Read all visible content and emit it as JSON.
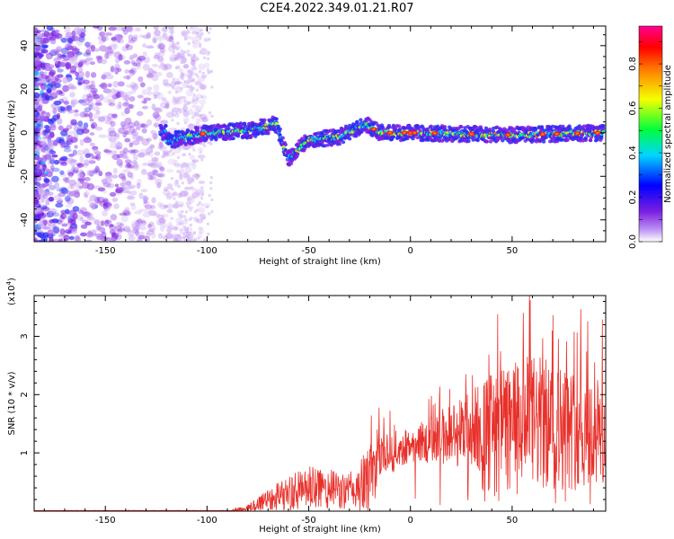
{
  "title": "C2E4.2022.349.01.21.R07",
  "chart_data": [
    {
      "type": "heatmap",
      "xlabel": "Height of straight line (km)",
      "ylabel": "Frequency (Hz)",
      "xlim": [
        -185,
        96
      ],
      "ylim": [
        -50,
        49
      ],
      "xticks": [
        -150,
        -100,
        -50,
        0,
        50
      ],
      "yticks": [
        -40,
        -20,
        0,
        20,
        40
      ],
      "colorbar": {
        "label": "Normalized spectral amplitude",
        "range": [
          0,
          0.97
        ],
        "ticks": [
          0.0,
          0.2,
          0.4,
          0.6,
          0.8
        ],
        "colormap": [
          "#ffffff",
          "#8a2be2",
          "#0000ff",
          "#00e5ff",
          "#00ff3c",
          "#fff000",
          "#ff8c00",
          "#ff0000",
          "#ff0090"
        ]
      },
      "signal_trace": [
        {
          "x": -120,
          "y": -4
        },
        {
          "x": -100,
          "y": 0
        },
        {
          "x": -80,
          "y": 1
        },
        {
          "x": -66,
          "y": 4
        },
        {
          "x": -60,
          "y": -12
        },
        {
          "x": -50,
          "y": -3
        },
        {
          "x": -35,
          "y": -2
        },
        {
          "x": -22,
          "y": 4
        },
        {
          "x": -15,
          "y": 0
        },
        {
          "x": 0,
          "y": 0
        },
        {
          "x": 50,
          "y": -1
        },
        {
          "x": 95,
          "y": 0
        }
      ]
    },
    {
      "type": "line",
      "xlabel": "Height of straight line (km)",
      "ylabel": "SNR (10 * v/v)",
      "multiplier": "(x10",
      "multiplier_exp": "4",
      "multiplier_close": ")",
      "xlim": [
        -185,
        96
      ],
      "ylim": [
        0,
        3.7
      ],
      "xticks": [
        -150,
        -100,
        -50,
        0,
        50
      ],
      "yticks": [
        1,
        2,
        3
      ],
      "color": "#e8302a",
      "envelope": [
        {
          "x": -185,
          "base": 0.0,
          "amp": 0.02
        },
        {
          "x": -90,
          "base": 0.0,
          "amp": 0.02
        },
        {
          "x": -80,
          "base": 0.03,
          "amp": 0.1
        },
        {
          "x": -70,
          "base": 0.2,
          "amp": 0.3
        },
        {
          "x": -50,
          "base": 0.35,
          "amp": 0.55
        },
        {
          "x": -40,
          "base": 0.35,
          "amp": 0.5
        },
        {
          "x": -30,
          "base": 0.3,
          "amp": 0.45
        },
        {
          "x": -20,
          "base": 0.45,
          "amp": 0.9
        },
        {
          "x": -15,
          "base": 0.9,
          "amp": 0.6
        },
        {
          "x": 0,
          "base": 1.1,
          "amp": 0.4
        },
        {
          "x": 10,
          "base": 1.2,
          "amp": 0.6
        },
        {
          "x": 25,
          "base": 1.3,
          "amp": 0.9
        },
        {
          "x": 40,
          "base": 1.4,
          "amp": 1.3
        },
        {
          "x": 60,
          "base": 1.4,
          "amp": 1.7
        },
        {
          "x": 80,
          "base": 1.3,
          "amp": 1.5
        },
        {
          "x": 96,
          "base": 1.2,
          "amp": 1.4
        }
      ]
    }
  ]
}
